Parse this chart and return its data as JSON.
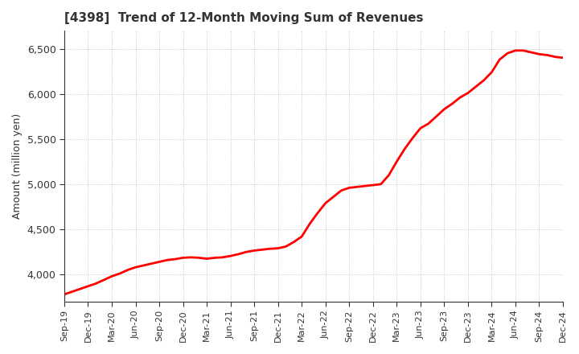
{
  "title": "[4398]  Trend of 12-Month Moving Sum of Revenues",
  "ylabel": "Amount (million yen)",
  "line_color": "#ff0000",
  "background_color": "#ffffff",
  "grid_color": "#aaaaaa",
  "ylim": [
    3700,
    6700
  ],
  "yticks": [
    4000,
    4500,
    5000,
    5500,
    6000,
    6500
  ],
  "values": [
    3780,
    3810,
    3840,
    3870,
    3900,
    3940,
    3980,
    4010,
    4050,
    4080,
    4100,
    4120,
    4140,
    4160,
    4170,
    4185,
    4190,
    4185,
    4175,
    4185,
    4190,
    4205,
    4225,
    4250,
    4265,
    4275,
    4285,
    4290,
    4310,
    4360,
    4420,
    4560,
    4680,
    4790,
    4860,
    4930,
    4960,
    4970,
    4980,
    4990,
    5000,
    5100,
    5250,
    5390,
    5510,
    5620,
    5670,
    5750,
    5830,
    5890,
    5960,
    6010,
    6080,
    6150,
    6240,
    6380,
    6450,
    6480,
    6480,
    6460,
    6440,
    6430,
    6410,
    6400
  ],
  "xtick_labels": [
    "Sep-19",
    "Dec-19",
    "Mar-20",
    "Jun-20",
    "Sep-20",
    "Dec-20",
    "Mar-21",
    "Jun-21",
    "Sep-21",
    "Dec-21",
    "Mar-22",
    "Jun-22",
    "Sep-22",
    "Dec-22",
    "Mar-23",
    "Jun-23",
    "Sep-23",
    "Dec-23",
    "Mar-24",
    "Jun-24",
    "Sep-24",
    "Dec-24"
  ],
  "xtick_positions": [
    0,
    3,
    6,
    9,
    12,
    15,
    18,
    21,
    24,
    27,
    30,
    33,
    36,
    39,
    42,
    45,
    48,
    51,
    54,
    57,
    60,
    63
  ]
}
